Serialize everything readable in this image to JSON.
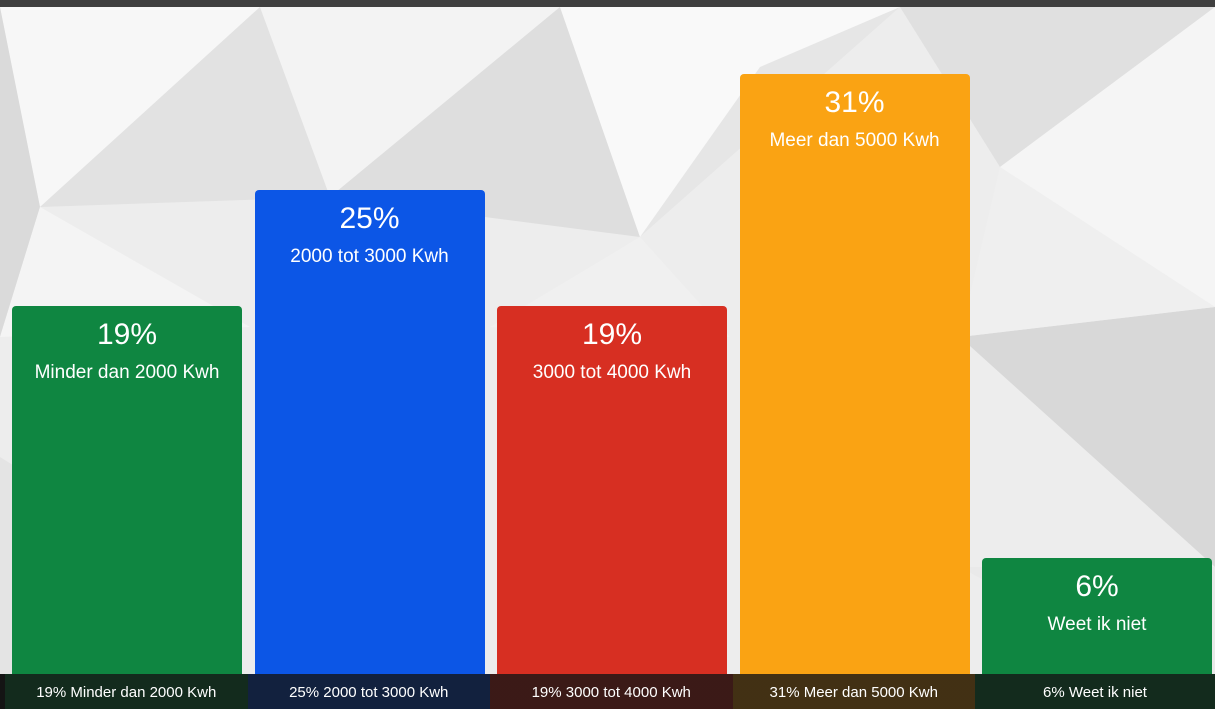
{
  "chart_data": {
    "type": "bar",
    "ylim": [
      0,
      35
    ],
    "categories": [
      "Minder dan 2000 Kwh",
      "2000 tot 3000 Kwh",
      "3000 tot 4000 Kwh",
      "Meer dan 5000 Kwh",
      "Weet ik niet"
    ],
    "values": [
      19,
      25,
      19,
      31,
      6
    ],
    "bars": [
      {
        "percent": "19%",
        "label": "Minder dan 2000 Kwh",
        "color": "#0f8641"
      },
      {
        "percent": "25%",
        "label": "2000 tot 3000 Kwh",
        "color": "#0c56e6"
      },
      {
        "percent": "19%",
        "label": "3000 tot 4000 Kwh",
        "color": "#d72f22"
      },
      {
        "percent": "31%",
        "label": "Meer dan 5000 Kwh",
        "color": "#faa313"
      },
      {
        "percent": "6%",
        "label": "Weet ik niet",
        "color": "#0f8641"
      }
    ],
    "footer": [
      {
        "text": "19% Minder dan 2000 Kwh",
        "color": "#0f8641"
      },
      {
        "text": "25% 2000 tot 3000 Kwh",
        "color": "#0c56e6"
      },
      {
        "text": "19% 3000 tot 4000 Kwh",
        "color": "#d72f22"
      },
      {
        "text": "31% Meer dan 5000 Kwh",
        "color": "#faa313"
      },
      {
        "text": "6% Weet ik niet",
        "color": "#0f8641"
      }
    ]
  }
}
